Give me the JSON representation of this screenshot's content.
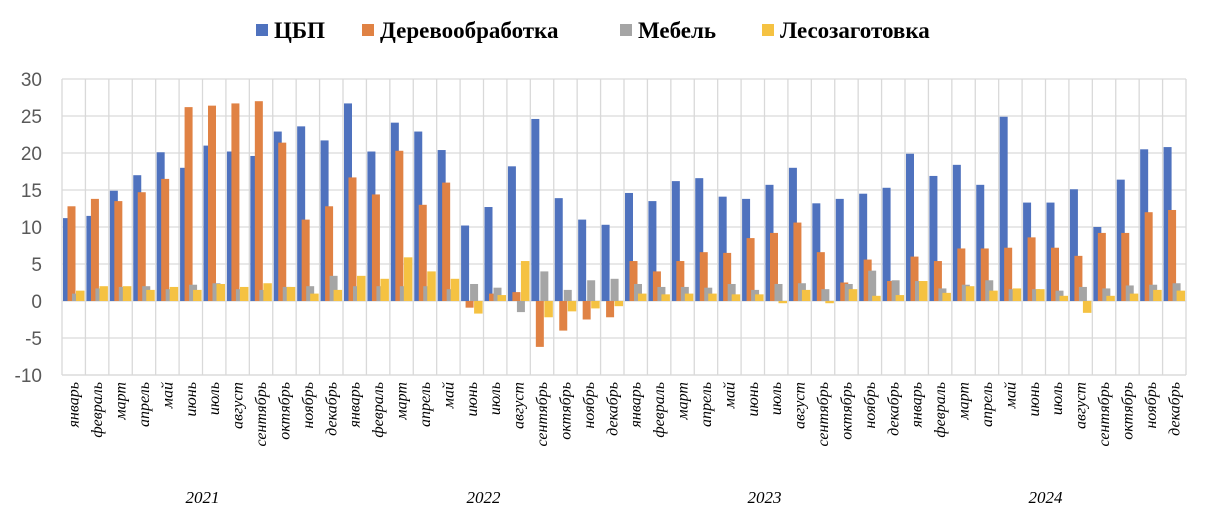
{
  "chart_data": {
    "type": "bar",
    "title": "",
    "xlabel": "",
    "ylabel": "",
    "ylim": [
      -10,
      30
    ],
    "yticks": [
      -10,
      -5,
      0,
      5,
      10,
      15,
      20,
      25,
      30
    ],
    "grid": true,
    "legend_position": "top",
    "years": [
      "2021",
      "2022",
      "2023",
      "2024"
    ],
    "months": [
      "январь",
      "февраль",
      "март",
      "апрель",
      "май",
      "июнь",
      "июль",
      "август",
      "сентябрь",
      "октябрь",
      "ноябрь",
      "декабрь"
    ],
    "series": [
      {
        "name": "ЦБП",
        "color": "#4f72be",
        "values": [
          11.2,
          11.5,
          14.9,
          17.0,
          20.1,
          18.0,
          21.0,
          20.2,
          19.6,
          22.9,
          23.6,
          21.7,
          26.7,
          20.2,
          24.1,
          22.9,
          20.4,
          10.2,
          12.7,
          18.2,
          24.6,
          13.9,
          11.0,
          10.3,
          14.6,
          13.5,
          16.2,
          16.6,
          14.1,
          13.8,
          15.7,
          18.0,
          13.2,
          13.8,
          14.5,
          15.3,
          19.9,
          16.9,
          18.4,
          15.7,
          24.9,
          13.3,
          13.3,
          15.1,
          10.0,
          16.4,
          20.5,
          20.8
        ]
      },
      {
        "name": "Деревообработка",
        "color": "#e08244",
        "values": [
          12.8,
          13.8,
          13.5,
          14.7,
          16.5,
          26.2,
          26.4,
          26.7,
          27.0,
          21.4,
          11.0,
          12.8,
          16.7,
          14.4,
          20.3,
          13.0,
          16.0,
          -0.9,
          1.0,
          1.2,
          -6.2,
          -4.0,
          -2.5,
          -2.2,
          5.4,
          4.0,
          5.4,
          6.6,
          6.5,
          8.5,
          9.2,
          10.6,
          6.6,
          2.5,
          5.6,
          2.7,
          6.0,
          5.4,
          7.1,
          7.1,
          7.2,
          8.6,
          7.2,
          6.1,
          9.2,
          9.2,
          12.0,
          12.3
        ]
      },
      {
        "name": "Мебель",
        "color": "#a5a5a5",
        "values": [
          1.0,
          1.7,
          1.9,
          2.0,
          1.6,
          2.2,
          2.4,
          1.6,
          1.5,
          1.9,
          2.0,
          3.4,
          2.0,
          2.0,
          2.0,
          2.0,
          1.6,
          2.3,
          1.8,
          -1.5,
          4.0,
          1.5,
          2.8,
          3.0,
          2.3,
          1.9,
          1.9,
          1.8,
          2.3,
          1.5,
          2.3,
          2.4,
          1.6,
          2.3,
          4.1,
          2.8,
          2.7,
          1.7,
          2.2,
          2.8,
          1.6,
          1.6,
          1.4,
          1.9,
          1.7,
          2.1,
          2.2,
          2.4
        ]
      },
      {
        "name": "Лесозаготовка",
        "color": "#f5c242",
        "values": [
          1.4,
          2.0,
          2.0,
          1.5,
          1.9,
          1.5,
          2.3,
          1.9,
          2.4,
          1.9,
          1.0,
          1.5,
          3.4,
          3.0,
          5.9,
          4.0,
          3.0,
          -1.7,
          0.8,
          5.4,
          -2.2,
          -1.4,
          -1.0,
          -0.7,
          1.0,
          0.9,
          1.0,
          1.0,
          0.9,
          0.9,
          -0.3,
          1.5,
          -0.3,
          1.6,
          0.7,
          0.8,
          2.7,
          1.1,
          2.0,
          1.4,
          1.7,
          1.6,
          0.7,
          -1.6,
          0.7,
          1.0,
          1.5,
          1.4
        ]
      }
    ]
  }
}
